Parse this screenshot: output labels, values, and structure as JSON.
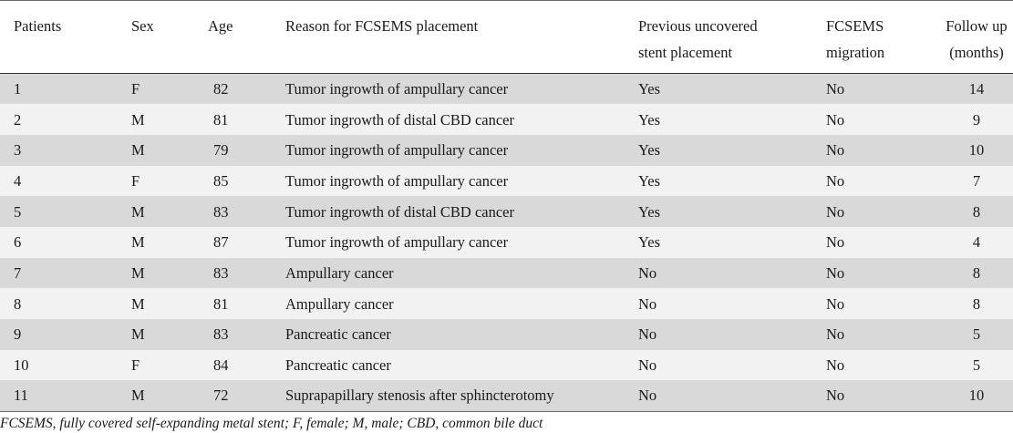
{
  "table": {
    "headers": [
      [
        "Patients"
      ],
      [
        "Sex"
      ],
      [
        "Age"
      ],
      [
        "Reason for FCSEMS placement"
      ],
      [
        "Previous uncovered",
        "stent placement"
      ],
      [
        "FCSEMS",
        "migration"
      ],
      [
        "Follow up",
        "(months)"
      ]
    ],
    "rows": [
      [
        "1",
        "F",
        "82",
        "Tumor ingrowth of ampullary cancer",
        "Yes",
        "No",
        "14"
      ],
      [
        "2",
        "M",
        "81",
        "Tumor ingrowth of distal CBD cancer",
        "Yes",
        "No",
        "9"
      ],
      [
        "3",
        "M",
        "79",
        "Tumor ingrowth of ampullary cancer",
        "Yes",
        "No",
        "10"
      ],
      [
        "4",
        "F",
        "85",
        "Tumor ingrowth of ampullary cancer",
        "Yes",
        "No",
        "7"
      ],
      [
        "5",
        "M",
        "83",
        "Tumor ingrowth of distal CBD cancer",
        "Yes",
        "No",
        "8"
      ],
      [
        "6",
        "M",
        "87",
        "Tumor ingrowth of ampullary cancer",
        "Yes",
        "No",
        "4"
      ],
      [
        "7",
        "M",
        "83",
        "Ampullary cancer",
        "No",
        "No",
        "8"
      ],
      [
        "8",
        "M",
        "81",
        "Ampullary cancer",
        "No",
        "No",
        "8"
      ],
      [
        "9",
        "M",
        "83",
        "Pancreatic cancer",
        "No",
        "No",
        "5"
      ],
      [
        "10",
        "F",
        "84",
        "Pancreatic cancer",
        "No",
        "No",
        "5"
      ],
      [
        "11",
        "M",
        "72",
        "Suprapapillary stenosis after sphincterotomy",
        "No",
        "No",
        "10"
      ]
    ]
  },
  "footnote": "FCSEMS, fully covered self-expanding metal stent; F, female; M, male; CBD, common bile duct"
}
